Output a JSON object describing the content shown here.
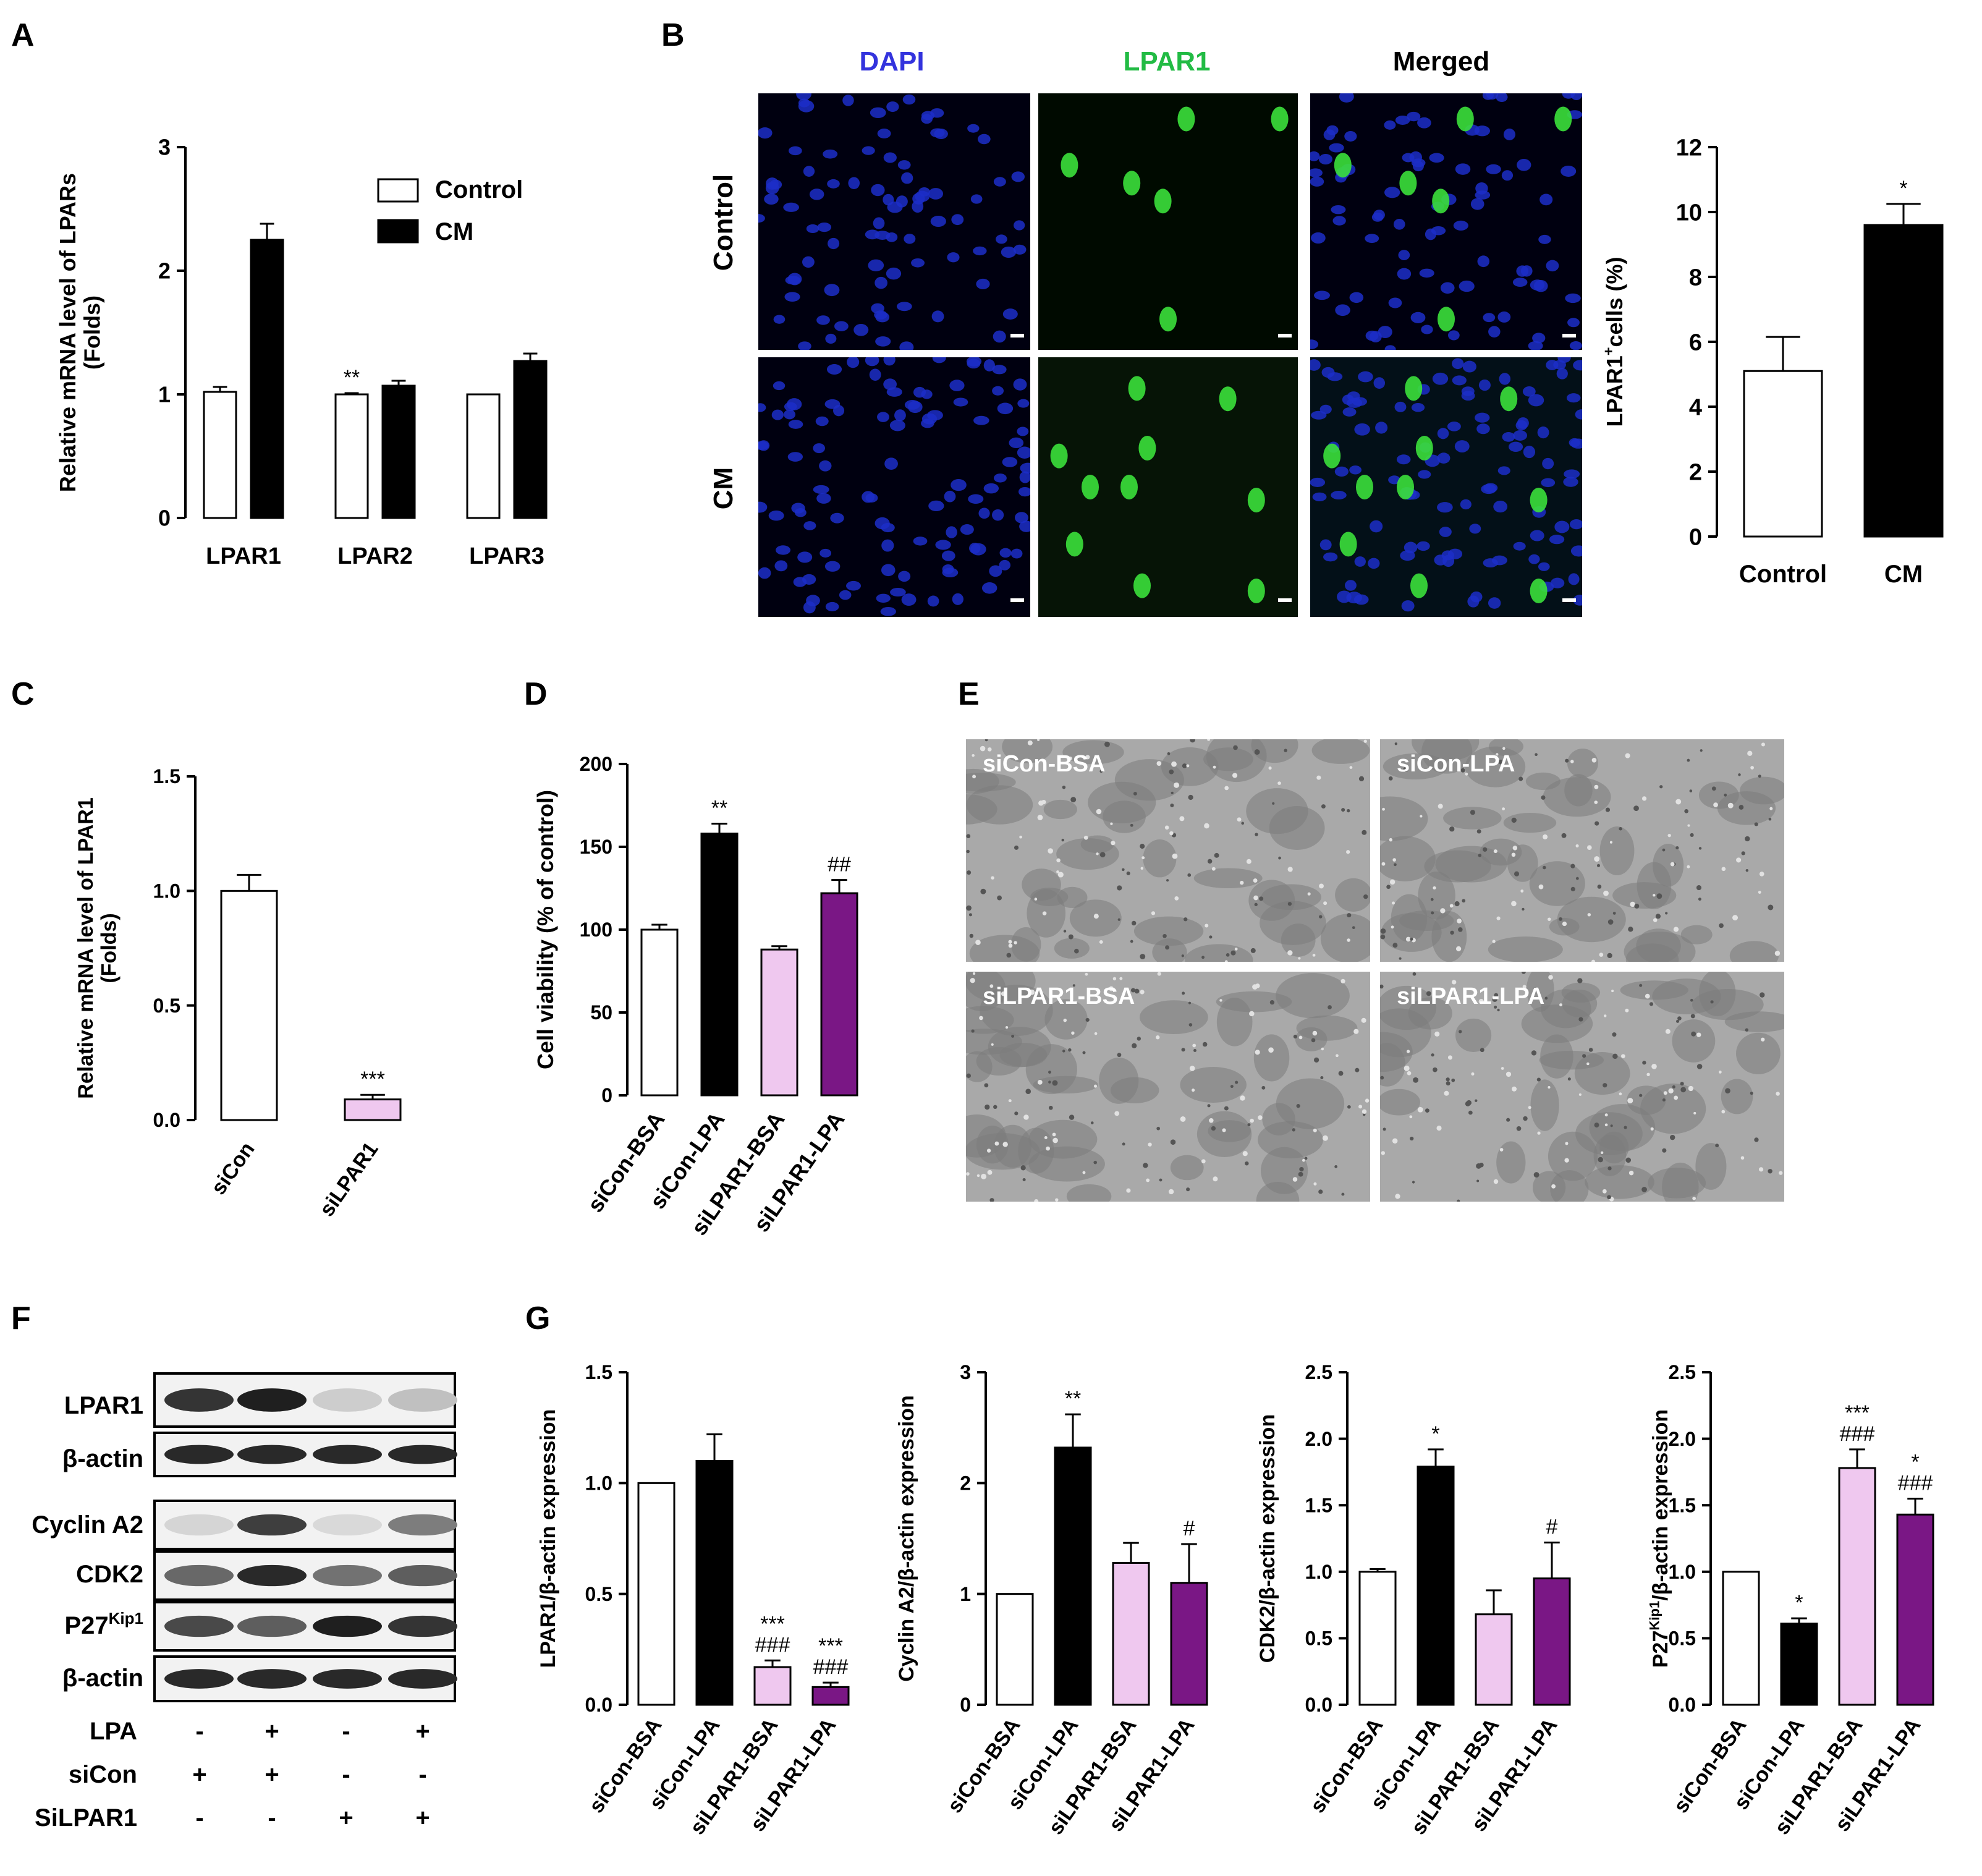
{
  "panel_letters": [
    "A",
    "B",
    "C",
    "D",
    "E",
    "F",
    "G"
  ],
  "colors": {
    "control": "#ffffff",
    "cm": "#000000",
    "siCon_BSA": "#ffffff",
    "siCon_LPA": "#000000",
    "siLPAR1_BSA": "#efc8ef",
    "siLPAR1_LPA": "#7a1785",
    "dapi_header": "#3333dd",
    "lpar1_header": "#22bb44",
    "dapi_nuclei": "#1c2ec8",
    "lpar1_cells": "#3be03b",
    "phase_bg": "#a9a9a9"
  },
  "panelB_images": {
    "column_headers": [
      "DAPI",
      "LPAR1",
      "Merged"
    ],
    "row_labels": [
      "Control",
      "CM"
    ]
  },
  "panelE_images": {
    "labels": [
      "siCon-BSA",
      "siCon-LPA",
      "siLPAR1-BSA",
      "siLPAR1-LPA"
    ]
  },
  "panelF_blot": {
    "bands": [
      "LPAR1",
      "β-actin",
      "Cyclin A2",
      "CDK2",
      "P27",
      "β-actin"
    ],
    "p27_superscript": "Kip1",
    "band_intensity": [
      [
        0.85,
        0.95,
        0.12,
        0.18
      ],
      [
        0.9,
        0.9,
        0.9,
        0.9
      ],
      [
        0.08,
        0.8,
        0.06,
        0.5
      ],
      [
        0.6,
        0.9,
        0.55,
        0.65
      ],
      [
        0.75,
        0.65,
        0.95,
        0.85
      ],
      [
        0.9,
        0.9,
        0.9,
        0.9
      ]
    ],
    "treatments": [
      {
        "label": "LPA",
        "signs": [
          "-",
          "+",
          "-",
          "+"
        ]
      },
      {
        "label": "siCon",
        "signs": [
          "+",
          "+",
          "-",
          "-"
        ]
      },
      {
        "label": "SiLPAR1",
        "signs": [
          "-",
          "-",
          "+",
          "+"
        ]
      }
    ]
  },
  "chart_data": [
    {
      "panel": "A",
      "type": "bar",
      "categories": [
        "LPAR1",
        "LPAR2",
        "LPAR3"
      ],
      "series": [
        {
          "name": "Control",
          "values": [
            1.02,
            1.0,
            1.0
          ],
          "errors": [
            0.04,
            0.01,
            0.0
          ]
        },
        {
          "name": "CM",
          "values": [
            2.25,
            1.07,
            1.27
          ],
          "errors": [
            0.13,
            0.04,
            0.06
          ]
        }
      ],
      "annotations": [
        [
          "",
          ""
        ],
        [
          "**",
          ""
        ],
        [
          "",
          ""
        ]
      ],
      "ylabel": "Relative mRNA level of LPARs",
      "ylabel2": "(Folds)",
      "ylim": [
        0,
        3
      ],
      "yticks": [
        "0",
        "1",
        "2",
        "3"
      ],
      "legend": "top-right"
    },
    {
      "panel": "B",
      "type": "bar",
      "categories": [
        "Control",
        "CM"
      ],
      "values": [
        5.1,
        9.6
      ],
      "errors": [
        1.05,
        0.65
      ],
      "annotations": [
        "",
        "*"
      ],
      "ylabel": "cells (%)",
      "ylabel_prefix": "LPAR1",
      "ylabel_sup": "+",
      "ylim": [
        0,
        12
      ],
      "yticks": [
        "0",
        "2",
        "4",
        "6",
        "8",
        "10",
        "12"
      ]
    },
    {
      "panel": "C",
      "type": "bar",
      "categories": [
        "siCon",
        "siLPAR1"
      ],
      "values": [
        1.0,
        0.09
      ],
      "errors": [
        0.07,
        0.02
      ],
      "annotations": [
        [
          ""
        ],
        [
          "***"
        ]
      ],
      "ylabel": "Relative mRNA level of LPAR1",
      "ylabel2": "(Folds)",
      "ylim": [
        0,
        1.5
      ],
      "yticks": [
        "0.0",
        "0.5",
        "1.0",
        "1.5"
      ]
    },
    {
      "panel": "D",
      "type": "bar",
      "categories": [
        "siCon-BSA",
        "siCon-LPA",
        "siLPAR1-BSA",
        "siLPAR1-LPA"
      ],
      "values": [
        100,
        158,
        88,
        122
      ],
      "errors": [
        3,
        6,
        2,
        8
      ],
      "annotations": [
        [
          ""
        ],
        [
          "**"
        ],
        [
          ""
        ],
        [
          "##"
        ]
      ],
      "ylabel": "Cell viability (% of control)",
      "ylim": [
        0,
        200
      ],
      "yticks": [
        "0",
        "50",
        "100",
        "150",
        "200"
      ]
    },
    {
      "panel": "G",
      "type": "bar",
      "categories": [
        "siCon-BSA",
        "siCon-LPA",
        "siLPAR1-BSA",
        "siLPAR1-LPA"
      ],
      "values": [
        1.0,
        1.1,
        0.17,
        0.08
      ],
      "errors": [
        0.0,
        0.12,
        0.03,
        0.02
      ],
      "annotations": [
        [
          ""
        ],
        [
          ""
        ],
        [
          "***",
          "###"
        ],
        [
          "***",
          "###"
        ]
      ],
      "ylabel": "LPAR1/β-actin expression",
      "ylim": [
        0,
        1.5
      ],
      "yticks": [
        "0.0",
        "0.5",
        "1.0",
        "1.5"
      ]
    },
    {
      "panel": "G",
      "type": "bar",
      "categories": [
        "siCon-BSA",
        "siCon-LPA",
        "siLPAR1-BSA",
        "siLPAR1-LPA"
      ],
      "values": [
        1.0,
        2.32,
        1.28,
        1.1
      ],
      "errors": [
        0.0,
        0.3,
        0.18,
        0.35
      ],
      "annotations": [
        [
          ""
        ],
        [
          "**"
        ],
        [
          ""
        ],
        [
          "#"
        ]
      ],
      "ylabel": "Cyclin A2/β-actin expression",
      "ylim": [
        0,
        3
      ],
      "yticks": [
        "0",
        "1",
        "2",
        "3"
      ]
    },
    {
      "panel": "G",
      "type": "bar",
      "categories": [
        "siCon-BSA",
        "siCon-LPA",
        "siLPAR1-BSA",
        "siLPAR1-LPA"
      ],
      "values": [
        1.0,
        1.79,
        0.68,
        0.95
      ],
      "errors": [
        0.02,
        0.13,
        0.18,
        0.27
      ],
      "annotations": [
        [
          ""
        ],
        [
          "*"
        ],
        [
          ""
        ],
        [
          "#"
        ]
      ],
      "ylabel": "CDK2/β-actin expression",
      "ylim": [
        0,
        2.5
      ],
      "yticks": [
        "0.0",
        "0.5",
        "1.0",
        "1.5",
        "2.0",
        "2.5"
      ]
    },
    {
      "panel": "G",
      "type": "bar",
      "categories": [
        "siCon-BSA",
        "siCon-LPA",
        "siLPAR1-BSA",
        "siLPAR1-LPA"
      ],
      "values": [
        1.0,
        0.61,
        1.78,
        1.43
      ],
      "errors": [
        0.0,
        0.04,
        0.14,
        0.12
      ],
      "annotations": [
        [
          ""
        ],
        [
          "*"
        ],
        [
          "***",
          "###"
        ],
        [
          "*",
          "###"
        ]
      ],
      "ylabel": "/β-actin expression",
      "ylabel_prefix": "P27",
      "ylabel_sup": "Kip1",
      "ylim": [
        0,
        2.5
      ],
      "yticks": [
        "0.0",
        "0.5",
        "1.0",
        "1.5",
        "2.0",
        "2.5"
      ]
    }
  ]
}
